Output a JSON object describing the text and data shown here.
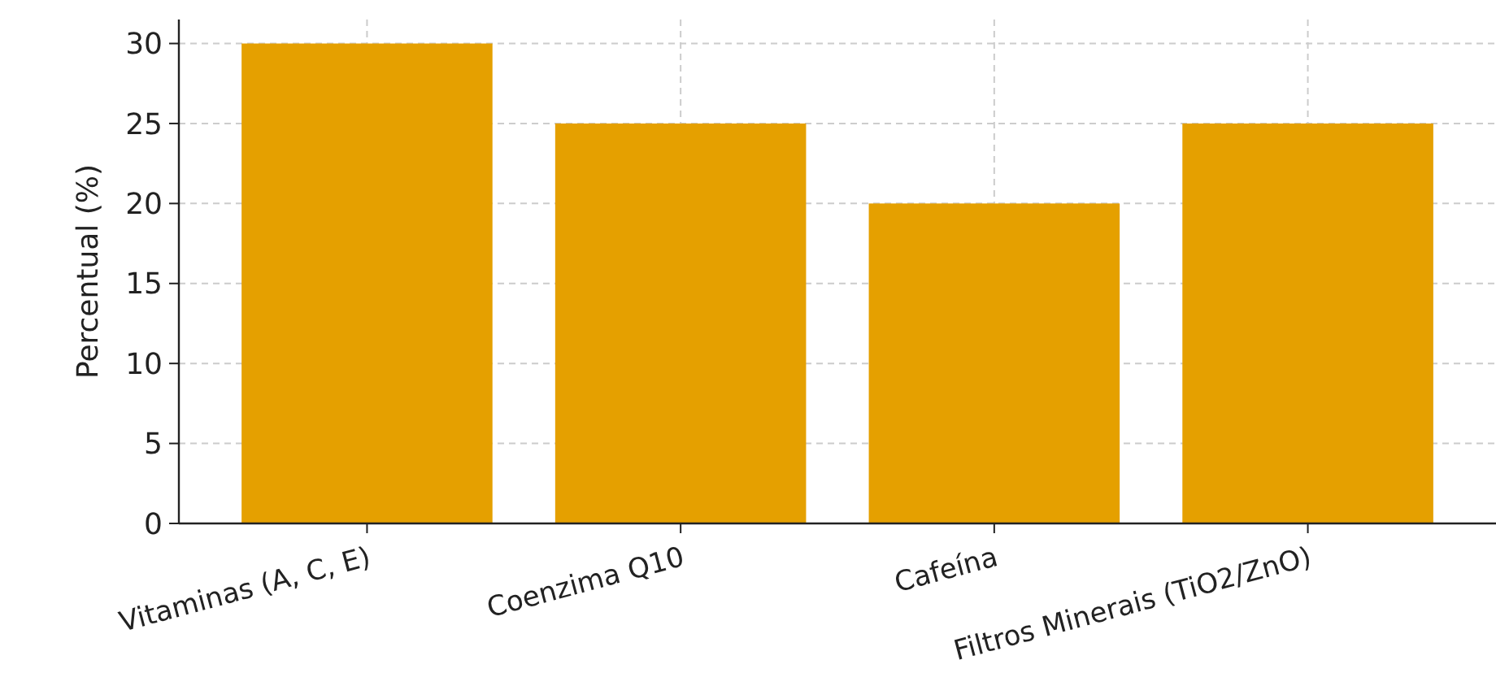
{
  "chart_data": {
    "type": "bar",
    "ylabel": "Percentual (%)",
    "categories": [
      "Vitaminas (A, C, E)",
      "Coenzima Q10",
      "Cafeína",
      "Filtros Minerais (TiO2/ZnO)"
    ],
    "values": [
      30,
      25,
      20,
      25
    ],
    "color": "#e5a000",
    "ylim": [
      0,
      31.5
    ],
    "yticks": [
      0,
      5,
      10,
      15,
      20,
      25,
      30
    ],
    "grid": true
  }
}
